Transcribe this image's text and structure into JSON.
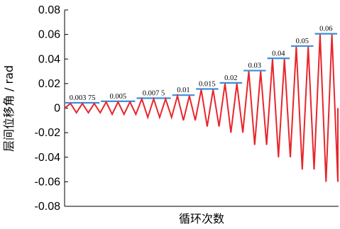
{
  "chart_data": {
    "type": "line",
    "xlabel": "循环次数",
    "ylabel": "层间位移角 / rad",
    "ylim": [
      -0.08,
      0.08
    ],
    "yticks": [
      "0.08",
      "0.06",
      "0.04",
      "0.02",
      "0",
      "-0.02",
      "-0.04",
      "-0.06",
      "-0.08"
    ],
    "grid": false,
    "legend": "none",
    "series_color": "#e8262b",
    "annotation_color": "#3b8fd9",
    "levels": [
      {
        "label": "0.003 75",
        "amplitude": 0.00375,
        "cycles": 3
      },
      {
        "label": "0.005",
        "amplitude": 0.005,
        "cycles": 3
      },
      {
        "label": "0.007 5",
        "amplitude": 0.0075,
        "cycles": 3
      },
      {
        "label": "0.01",
        "amplitude": 0.01,
        "cycles": 2
      },
      {
        "label": "0.015",
        "amplitude": 0.015,
        "cycles": 2
      },
      {
        "label": "0.02",
        "amplitude": 0.02,
        "cycles": 2
      },
      {
        "label": "0.03",
        "amplitude": 0.03,
        "cycles": 2
      },
      {
        "label": "0.04",
        "amplitude": 0.04,
        "cycles": 2
      },
      {
        "label": "0.05",
        "amplitude": 0.05,
        "cycles": 2
      },
      {
        "label": "0.06",
        "amplitude": 0.06,
        "cycles": 2
      }
    ]
  }
}
